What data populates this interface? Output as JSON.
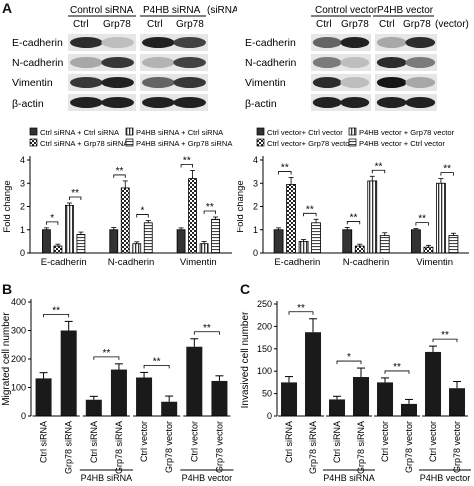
{
  "panel_letters": [
    "A",
    "B",
    "C"
  ],
  "western_left": {
    "groups": [
      {
        "label": "Control siRNA",
        "lanes": [
          "Ctrl",
          "Grp78"
        ]
      },
      {
        "label": "P4HB siRNA",
        "lanes": [
          "Ctrl",
          "Grp78"
        ]
      }
    ],
    "suffix": "(siRNA)",
    "proteins": [
      "E-cadherin",
      "N-cadherin",
      "Vimentin",
      "β-actin"
    ]
  },
  "western_right": {
    "groups": [
      {
        "label": "Control vector",
        "lanes": [
          "Ctrl",
          "Grp78"
        ]
      },
      {
        "label": "P4HB vector",
        "lanes": [
          "Ctrl",
          "Grp78"
        ]
      }
    ],
    "suffix": "(vector)",
    "proteins": [
      "E-cadherin",
      "N-cadherin",
      "Vimentin",
      "β-actin"
    ]
  },
  "chart_data": [
    {
      "type": "bar",
      "ylabel": "Fold change",
      "ylim": [
        0,
        4
      ],
      "yticks": [
        0,
        1,
        2,
        3,
        4
      ],
      "categories": [
        "E-cadherin",
        "N-cadherin",
        "Vimentin"
      ],
      "legend": [
        "Ctrl siRNA + Ctrl siRNA",
        "Ctrl siRNA + Grp78 siRNA",
        "P4HB siRNA + Ctrl siRNA",
        "P4HB siRNA + Grp78 siRNA"
      ],
      "series": [
        {
          "name": "Ctrl siRNA + Ctrl siRNA",
          "values": [
            1.0,
            1.0,
            1.0
          ],
          "errors": [
            0.08,
            0.1,
            0.08
          ]
        },
        {
          "name": "Ctrl siRNA + Grp78 siRNA",
          "values": [
            0.3,
            2.8,
            3.2
          ],
          "errors": [
            0.08,
            0.3,
            0.35
          ]
        },
        {
          "name": "P4HB siRNA + Ctrl siRNA",
          "values": [
            2.05,
            0.4,
            0.4
          ],
          "errors": [
            0.1,
            0.08,
            0.1
          ]
        },
        {
          "name": "P4HB siRNA + Grp78 siRNA",
          "values": [
            0.8,
            1.3,
            1.45
          ],
          "errors": [
            0.1,
            0.1,
            0.1
          ]
        }
      ],
      "significance": [
        "*",
        "**",
        "**",
        "*",
        "**",
        "**"
      ]
    },
    {
      "type": "bar",
      "ylabel": "Fold change",
      "ylim": [
        0,
        4
      ],
      "yticks": [
        0,
        1,
        2,
        3,
        4
      ],
      "categories": [
        "E-cadherin",
        "N-cadherin",
        "Vimentin"
      ],
      "legend": [
        "Ctrl vector+ Ctrl vector",
        "Ctrl vector+ Grp78 vector",
        "P4HB vector + Grp78 vector",
        "P4HB vector + Ctrl vector"
      ],
      "series": [
        {
          "name": "Ctrl vector+ Ctrl vector",
          "values": [
            1.0,
            1.0,
            1.0
          ],
          "errors": [
            0.08,
            0.1,
            0.05
          ]
        },
        {
          "name": "Ctrl vector+ Grp78 vector",
          "values": [
            2.95,
            0.3,
            0.25
          ],
          "errors": [
            0.3,
            0.08,
            0.08
          ]
        },
        {
          "name": "P4HB vector + Grp78 vector",
          "values": [
            0.5,
            3.1,
            3.0
          ],
          "errors": [
            0.08,
            0.2,
            0.2
          ]
        },
        {
          "name": "P4HB vector + Ctrl vector",
          "values": [
            1.3,
            0.75,
            0.75
          ],
          "errors": [
            0.15,
            0.12,
            0.1
          ]
        }
      ],
      "significance": [
        "**",
        "**",
        "**",
        "**",
        "**",
        "**"
      ]
    },
    {
      "type": "bar",
      "ylabel": "Migrated cell number",
      "ylim": [
        0,
        400
      ],
      "yticks": [
        0,
        100,
        200,
        300,
        400
      ],
      "categories": [
        "Ctrl siRNA",
        "Grp78 siRNA",
        "Ctrl siRNA",
        "Grp78 siRNA",
        "Ctrl vector",
        "Grp78 vector",
        "Ctrl vector",
        "Grp78 vector"
      ],
      "groups": [
        "P4HB siRNA",
        "P4HB vector"
      ],
      "values": [
        132,
        300,
        57,
        163,
        135,
        50,
        243,
        123
      ],
      "errors": [
        20,
        32,
        12,
        20,
        18,
        20,
        28,
        18
      ],
      "significance": [
        "**",
        "**",
        "**",
        "**"
      ]
    },
    {
      "type": "bar",
      "ylabel": "Invasived cell number",
      "ylim": [
        0,
        250
      ],
      "yticks": [
        0,
        50,
        100,
        150,
        200,
        250
      ],
      "categories": [
        "Ctrl siRNA",
        "Grp78 siRNA",
        "Ctrl siRNA",
        "Grp78 siRNA",
        "Ctrl vector",
        "Grp78 vector",
        "Ctrl vector",
        "Grp78 vector"
      ],
      "groups": [
        "P4HB siRNA",
        "P4HB vector"
      ],
      "values": [
        75,
        187,
        37,
        87,
        75,
        27,
        143,
        62
      ],
      "errors": [
        13,
        30,
        7,
        20,
        10,
        10,
        13,
        15
      ],
      "significance": [
        "**",
        "*",
        "**",
        "**"
      ]
    }
  ]
}
